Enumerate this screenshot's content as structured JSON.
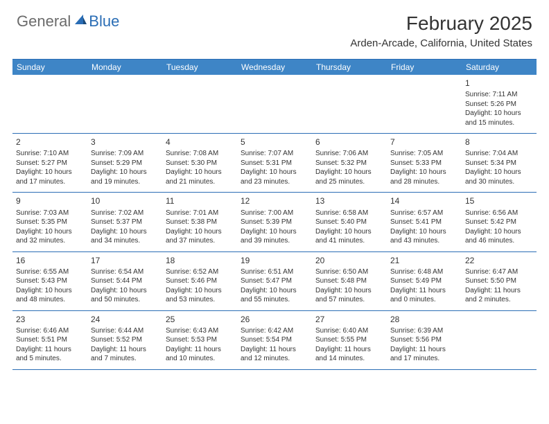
{
  "logo": {
    "text1": "General",
    "text2": "Blue"
  },
  "title": "February 2025",
  "location": "Arden-Arcade, California, United States",
  "header_bg": "#3e85c6",
  "border_color": "#2a6db5",
  "day_names": [
    "Sunday",
    "Monday",
    "Tuesday",
    "Wednesday",
    "Thursday",
    "Friday",
    "Saturday"
  ],
  "weeks": [
    [
      null,
      null,
      null,
      null,
      null,
      null,
      {
        "n": "1",
        "sr": "Sunrise: 7:11 AM",
        "ss": "Sunset: 5:26 PM",
        "d1": "Daylight: 10 hours",
        "d2": "and 15 minutes."
      }
    ],
    [
      {
        "n": "2",
        "sr": "Sunrise: 7:10 AM",
        "ss": "Sunset: 5:27 PM",
        "d1": "Daylight: 10 hours",
        "d2": "and 17 minutes."
      },
      {
        "n": "3",
        "sr": "Sunrise: 7:09 AM",
        "ss": "Sunset: 5:29 PM",
        "d1": "Daylight: 10 hours",
        "d2": "and 19 minutes."
      },
      {
        "n": "4",
        "sr": "Sunrise: 7:08 AM",
        "ss": "Sunset: 5:30 PM",
        "d1": "Daylight: 10 hours",
        "d2": "and 21 minutes."
      },
      {
        "n": "5",
        "sr": "Sunrise: 7:07 AM",
        "ss": "Sunset: 5:31 PM",
        "d1": "Daylight: 10 hours",
        "d2": "and 23 minutes."
      },
      {
        "n": "6",
        "sr": "Sunrise: 7:06 AM",
        "ss": "Sunset: 5:32 PM",
        "d1": "Daylight: 10 hours",
        "d2": "and 25 minutes."
      },
      {
        "n": "7",
        "sr": "Sunrise: 7:05 AM",
        "ss": "Sunset: 5:33 PM",
        "d1": "Daylight: 10 hours",
        "d2": "and 28 minutes."
      },
      {
        "n": "8",
        "sr": "Sunrise: 7:04 AM",
        "ss": "Sunset: 5:34 PM",
        "d1": "Daylight: 10 hours",
        "d2": "and 30 minutes."
      }
    ],
    [
      {
        "n": "9",
        "sr": "Sunrise: 7:03 AM",
        "ss": "Sunset: 5:35 PM",
        "d1": "Daylight: 10 hours",
        "d2": "and 32 minutes."
      },
      {
        "n": "10",
        "sr": "Sunrise: 7:02 AM",
        "ss": "Sunset: 5:37 PM",
        "d1": "Daylight: 10 hours",
        "d2": "and 34 minutes."
      },
      {
        "n": "11",
        "sr": "Sunrise: 7:01 AM",
        "ss": "Sunset: 5:38 PM",
        "d1": "Daylight: 10 hours",
        "d2": "and 37 minutes."
      },
      {
        "n": "12",
        "sr": "Sunrise: 7:00 AM",
        "ss": "Sunset: 5:39 PM",
        "d1": "Daylight: 10 hours",
        "d2": "and 39 minutes."
      },
      {
        "n": "13",
        "sr": "Sunrise: 6:58 AM",
        "ss": "Sunset: 5:40 PM",
        "d1": "Daylight: 10 hours",
        "d2": "and 41 minutes."
      },
      {
        "n": "14",
        "sr": "Sunrise: 6:57 AM",
        "ss": "Sunset: 5:41 PM",
        "d1": "Daylight: 10 hours",
        "d2": "and 43 minutes."
      },
      {
        "n": "15",
        "sr": "Sunrise: 6:56 AM",
        "ss": "Sunset: 5:42 PM",
        "d1": "Daylight: 10 hours",
        "d2": "and 46 minutes."
      }
    ],
    [
      {
        "n": "16",
        "sr": "Sunrise: 6:55 AM",
        "ss": "Sunset: 5:43 PM",
        "d1": "Daylight: 10 hours",
        "d2": "and 48 minutes."
      },
      {
        "n": "17",
        "sr": "Sunrise: 6:54 AM",
        "ss": "Sunset: 5:44 PM",
        "d1": "Daylight: 10 hours",
        "d2": "and 50 minutes."
      },
      {
        "n": "18",
        "sr": "Sunrise: 6:52 AM",
        "ss": "Sunset: 5:46 PM",
        "d1": "Daylight: 10 hours",
        "d2": "and 53 minutes."
      },
      {
        "n": "19",
        "sr": "Sunrise: 6:51 AM",
        "ss": "Sunset: 5:47 PM",
        "d1": "Daylight: 10 hours",
        "d2": "and 55 minutes."
      },
      {
        "n": "20",
        "sr": "Sunrise: 6:50 AM",
        "ss": "Sunset: 5:48 PM",
        "d1": "Daylight: 10 hours",
        "d2": "and 57 minutes."
      },
      {
        "n": "21",
        "sr": "Sunrise: 6:48 AM",
        "ss": "Sunset: 5:49 PM",
        "d1": "Daylight: 11 hours",
        "d2": "and 0 minutes."
      },
      {
        "n": "22",
        "sr": "Sunrise: 6:47 AM",
        "ss": "Sunset: 5:50 PM",
        "d1": "Daylight: 11 hours",
        "d2": "and 2 minutes."
      }
    ],
    [
      {
        "n": "23",
        "sr": "Sunrise: 6:46 AM",
        "ss": "Sunset: 5:51 PM",
        "d1": "Daylight: 11 hours",
        "d2": "and 5 minutes."
      },
      {
        "n": "24",
        "sr": "Sunrise: 6:44 AM",
        "ss": "Sunset: 5:52 PM",
        "d1": "Daylight: 11 hours",
        "d2": "and 7 minutes."
      },
      {
        "n": "25",
        "sr": "Sunrise: 6:43 AM",
        "ss": "Sunset: 5:53 PM",
        "d1": "Daylight: 11 hours",
        "d2": "and 10 minutes."
      },
      {
        "n": "26",
        "sr": "Sunrise: 6:42 AM",
        "ss": "Sunset: 5:54 PM",
        "d1": "Daylight: 11 hours",
        "d2": "and 12 minutes."
      },
      {
        "n": "27",
        "sr": "Sunrise: 6:40 AM",
        "ss": "Sunset: 5:55 PM",
        "d1": "Daylight: 11 hours",
        "d2": "and 14 minutes."
      },
      {
        "n": "28",
        "sr": "Sunrise: 6:39 AM",
        "ss": "Sunset: 5:56 PM",
        "d1": "Daylight: 11 hours",
        "d2": "and 17 minutes."
      },
      null
    ]
  ]
}
